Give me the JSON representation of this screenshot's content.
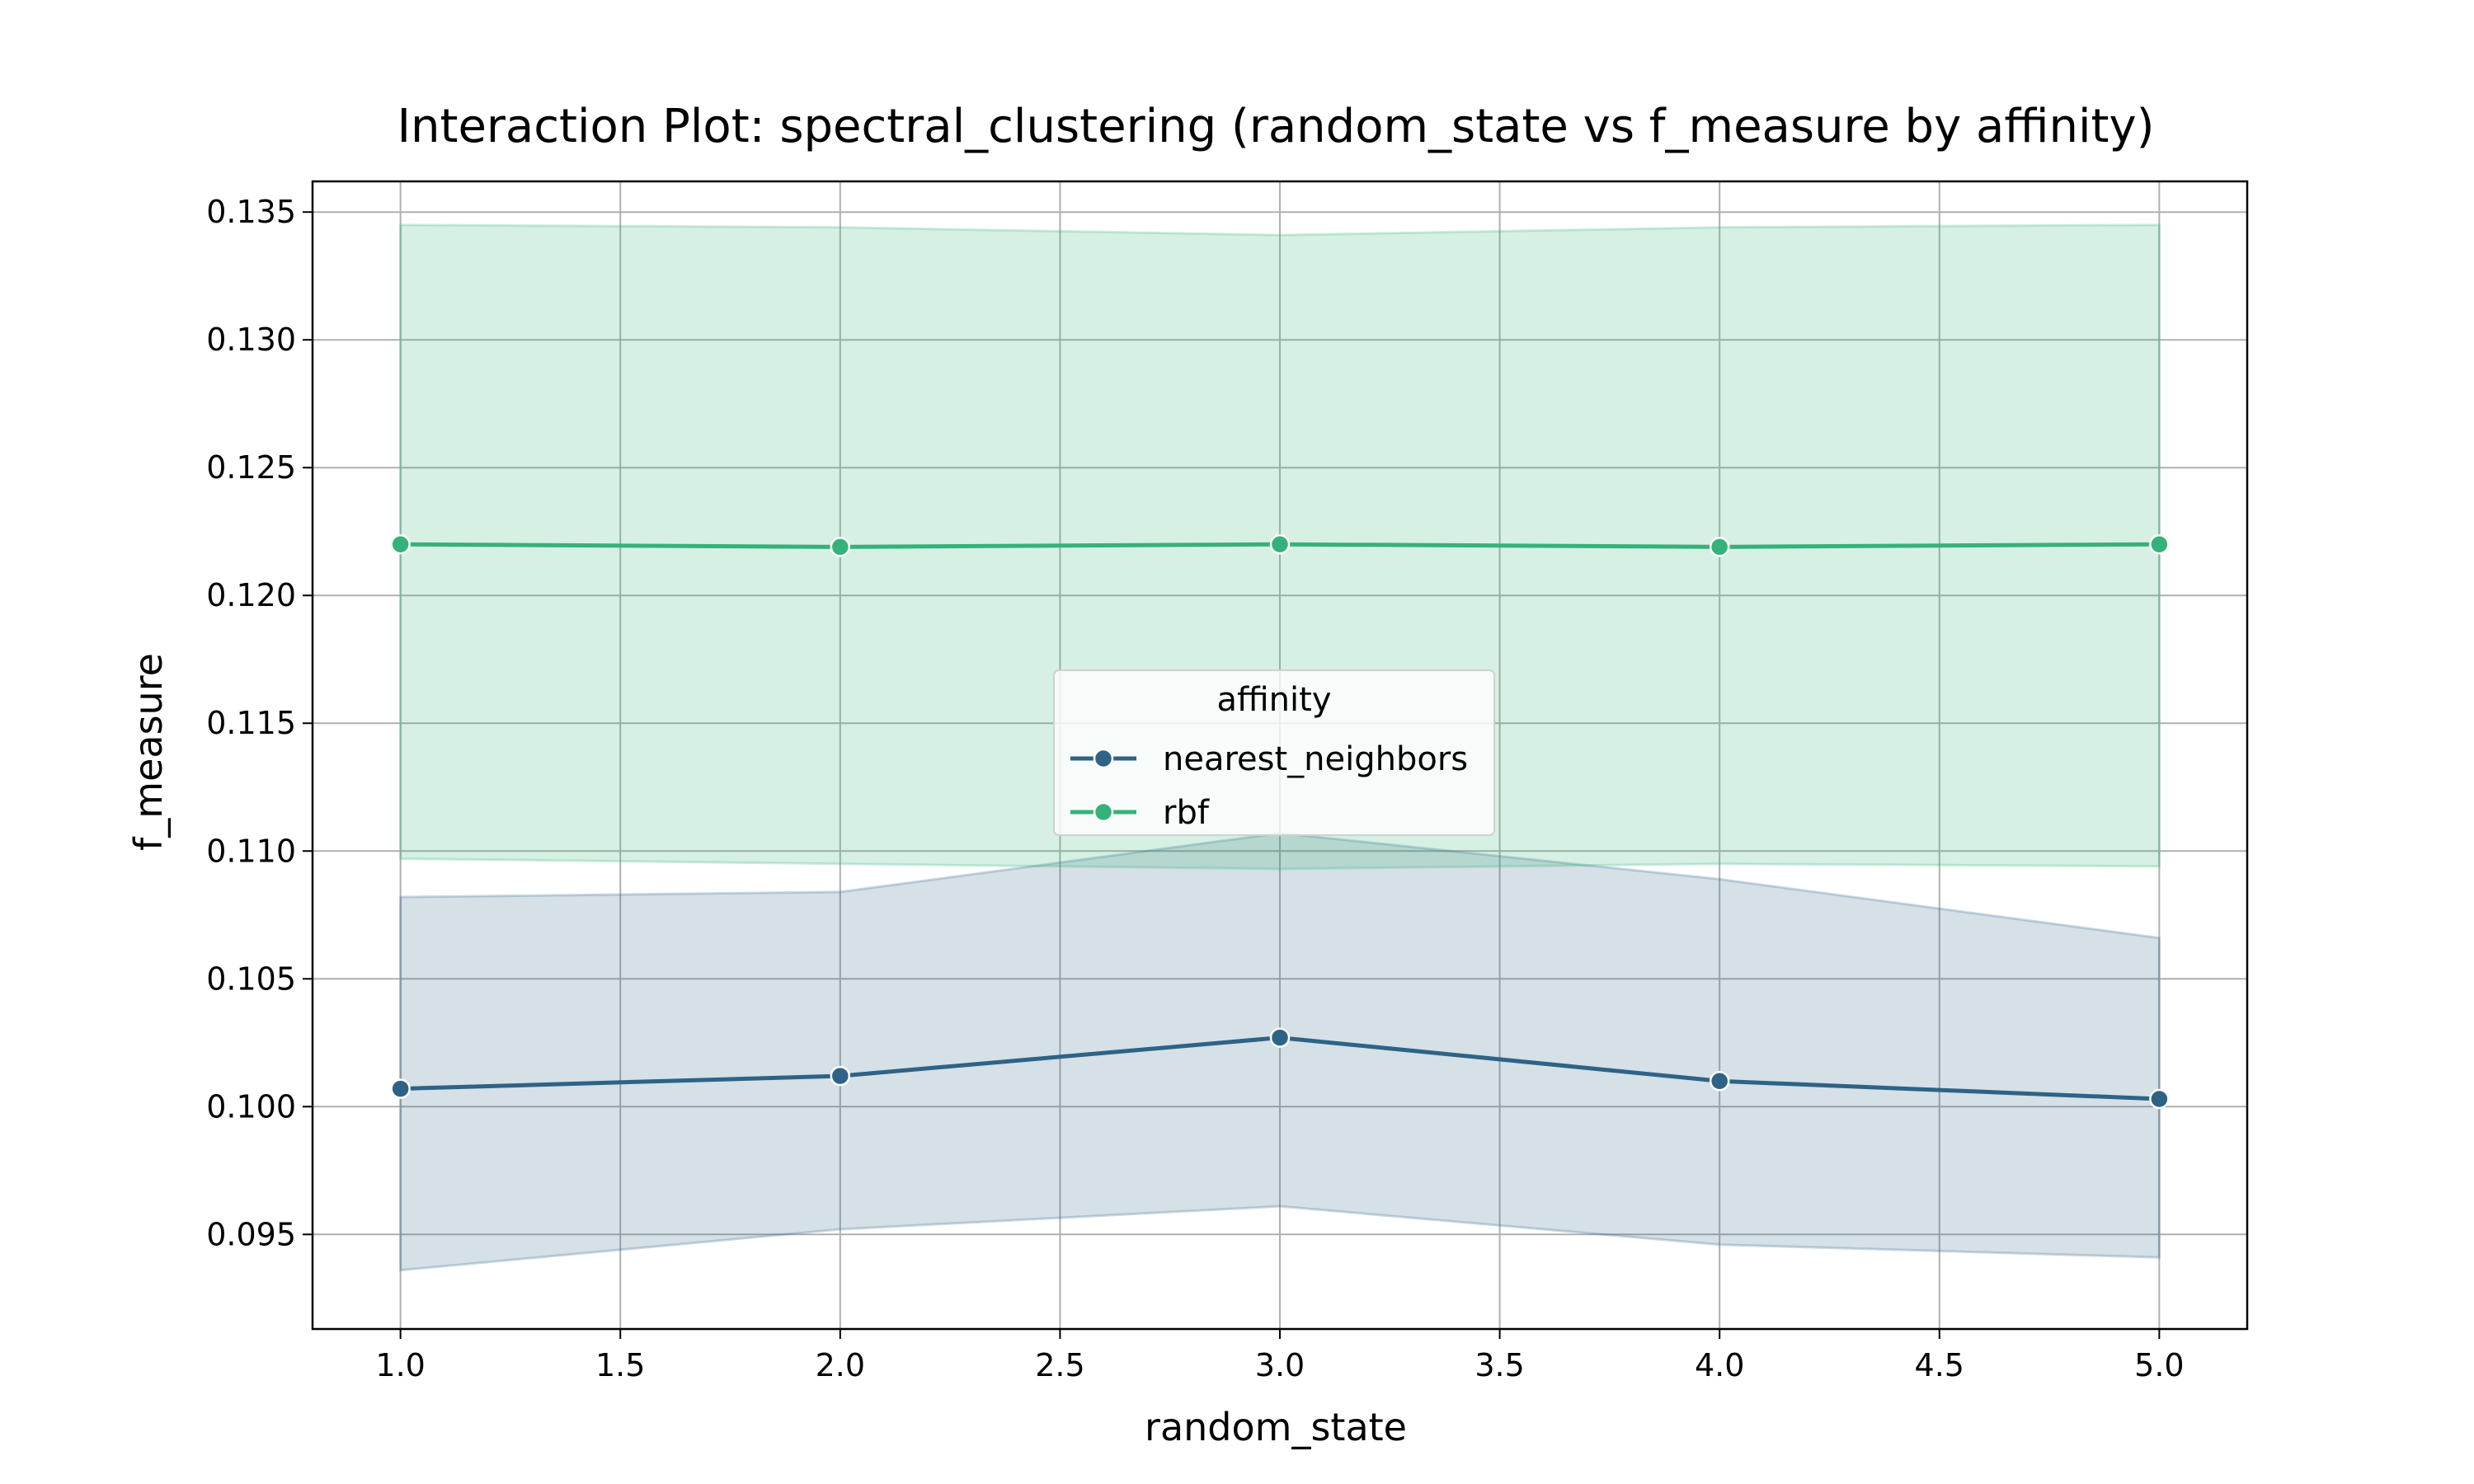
{
  "chart_data": {
    "type": "line",
    "title": "Interaction Plot: spectral_clustering (random_state vs f_measure by affinity)",
    "xlabel": "random_state",
    "ylabel": "f_measure",
    "xlim": [
      0.8,
      5.2
    ],
    "ylim": [
      0.0913,
      0.1362
    ],
    "x_ticks": [
      "1.0",
      "1.5",
      "2.0",
      "2.5",
      "3.0",
      "3.5",
      "4.0",
      "4.5",
      "5.0"
    ],
    "y_ticks": [
      "0.095",
      "0.100",
      "0.105",
      "0.110",
      "0.115",
      "0.120",
      "0.125",
      "0.130",
      "0.135"
    ],
    "grid": true,
    "legend": {
      "title": "affinity",
      "position": "center"
    },
    "x": [
      1,
      2,
      3,
      4,
      5
    ],
    "series": [
      {
        "name": "nearest_neighbors",
        "color": "#2e6386",
        "values": [
          0.1007,
          0.1012,
          0.1027,
          0.101,
          0.1003
        ],
        "ci_lower": [
          0.0936,
          0.0952,
          0.0961,
          0.0946,
          0.0941
        ],
        "ci_upper": [
          0.1082,
          0.1084,
          0.1107,
          0.1089,
          0.1066
        ]
      },
      {
        "name": "rbf",
        "color": "#35b27a",
        "values": [
          0.122,
          0.1219,
          0.122,
          0.1219,
          0.122
        ],
        "ci_lower": [
          0.1097,
          0.1095,
          0.1093,
          0.1095,
          0.1094
        ],
        "ci_upper": [
          0.1345,
          0.1344,
          0.1341,
          0.1344,
          0.1345
        ]
      }
    ]
  }
}
